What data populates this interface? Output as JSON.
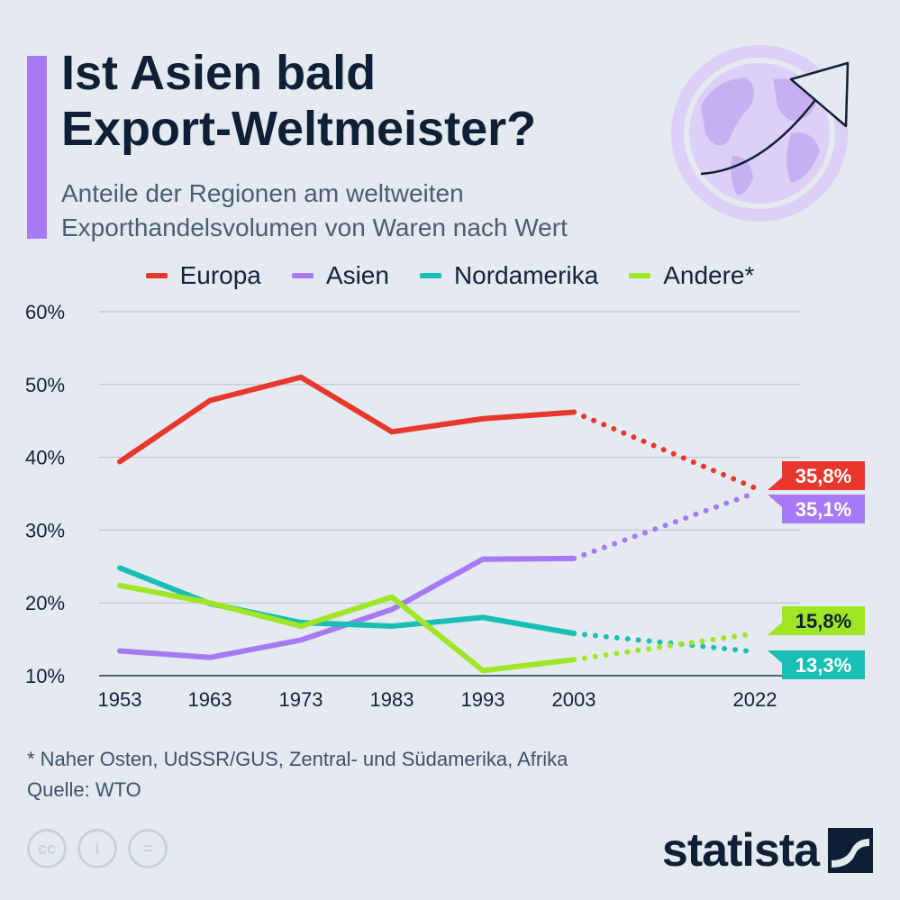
{
  "header": {
    "title_lines": [
      "Ist Asien bald",
      "Export-Weltmeister?"
    ],
    "subtitle_lines": [
      "Anteile der Regionen am weltweiten",
      "Exporthandelsvolumen von Waren nach Wert"
    ]
  },
  "chart_data": {
    "type": "line",
    "title": "Ist Asien bald Export-Weltmeister?",
    "subtitle": "Anteile der Regionen am weltweiten Exporthandelsvolumen von Waren nach Wert",
    "x": [
      1953,
      1963,
      1973,
      1983,
      1993,
      2003,
      2022
    ],
    "x_tick_labels": [
      "1953",
      "1963",
      "1973",
      "1983",
      "1993",
      "2003",
      "2022"
    ],
    "y_ticks": [
      10,
      20,
      30,
      40,
      50,
      60
    ],
    "y_tick_labels": [
      "10%",
      "20%",
      "30%",
      "40%",
      "50%",
      "60%"
    ],
    "ylim": [
      10,
      60
    ],
    "grid": true,
    "legend_placement": "top-center",
    "projection_note": "2003–2022 dotted",
    "series": [
      {
        "name": "Europa",
        "color": "#e8372c",
        "values": [
          39.4,
          47.8,
          51.0,
          43.5,
          45.3,
          46.2,
          35.8
        ],
        "end_label": "35,8%"
      },
      {
        "name": "Asien",
        "color": "#a67af4",
        "values": [
          13.4,
          12.5,
          14.9,
          19.1,
          26.0,
          26.1,
          35.1
        ],
        "end_label": "35,1%"
      },
      {
        "name": "Nordamerika",
        "color": "#18bfb5",
        "values": [
          24.8,
          19.9,
          17.3,
          16.8,
          18.0,
          15.8,
          13.3
        ],
        "end_label": "13,3%"
      },
      {
        "name": "Andere*",
        "color": "#a0e526",
        "values": [
          22.4,
          20.0,
          16.8,
          20.8,
          10.7,
          12.2,
          15.8
        ],
        "end_label": "15,8%"
      }
    ]
  },
  "footnote": {
    "note": "* Naher Osten, UdSSR/GUS, Zentral- und Südamerika, Afrika",
    "source": "Quelle: WTO"
  },
  "footer": {
    "brand": "statista",
    "icons": [
      "cc-icon",
      "person-icon",
      "equals-icon"
    ],
    "icon_glyphs": [
      "cc",
      "i",
      "="
    ]
  },
  "colors": {
    "accent": "#a67af4",
    "background": "#e4eaef",
    "text": "#12233c"
  }
}
